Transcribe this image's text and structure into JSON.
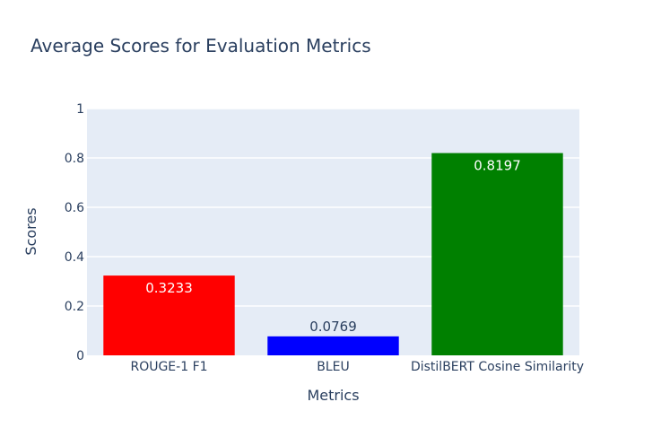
{
  "chart_data": {
    "type": "bar",
    "title": "Average Scores for Evaluation Metrics",
    "xlabel": "Metrics",
    "ylabel": "Scores",
    "categories": [
      "ROUGE-1 F1",
      "BLEU",
      "DistilBERT Cosine Similarity"
    ],
    "values": [
      0.3233,
      0.0769,
      0.8197
    ],
    "value_labels": [
      "0.3233",
      "0.0769",
      "0.8197"
    ],
    "bar_colors": [
      "#ff0000",
      "#0000ff",
      "#008000"
    ],
    "ylim": [
      0,
      1
    ],
    "yticks": [
      0,
      0.2,
      0.4,
      0.6,
      0.8,
      1
    ],
    "ytick_labels": [
      "0",
      "0.2",
      "0.4",
      "0.6",
      "0.8",
      "1"
    ],
    "grid": true,
    "plot_background": "#e5ecf6",
    "text_color": "#2a3f5f"
  }
}
